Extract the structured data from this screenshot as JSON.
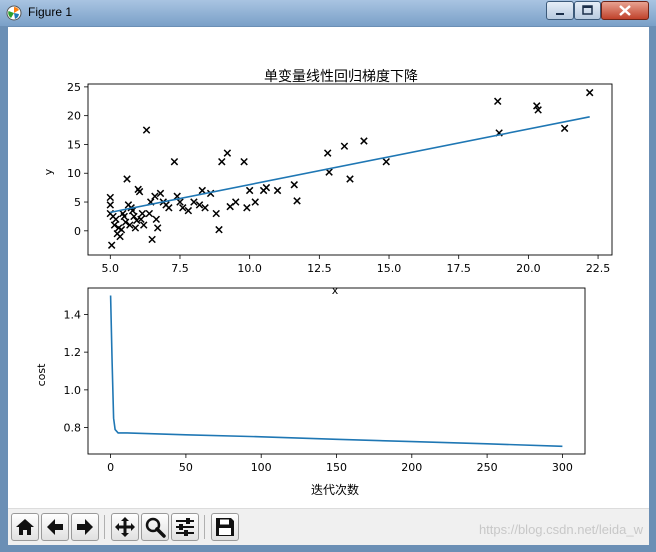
{
  "window": {
    "title": "Figure 1"
  },
  "chart_data": [
    {
      "type": "scatter",
      "title": "单变量线性回归梯度下降",
      "xlabel": "x",
      "ylabel": "y",
      "xlim": [
        4.2,
        23.0
      ],
      "ylim": [
        -4.2,
        25.5
      ],
      "grid": false,
      "xticks": [
        5.0,
        7.5,
        10.0,
        12.5,
        15.0,
        17.5,
        20.0,
        22.5
      ],
      "xtick_labels": [
        "5.0",
        "7.5",
        "10.0",
        "12.5",
        "15.0",
        "17.5",
        "20.0",
        "22.5"
      ],
      "yticks": [
        0,
        5,
        10,
        15,
        20,
        25
      ],
      "ytick_labels": [
        "0",
        "5",
        "10",
        "15",
        "20",
        "25"
      ],
      "series": [
        {
          "kind": "scatter",
          "marker": "x",
          "color": "#000000",
          "points": [
            [
              5.0,
              5.8
            ],
            [
              5.0,
              4.5
            ],
            [
              5.0,
              3.0
            ],
            [
              5.05,
              -2.5
            ],
            [
              5.1,
              2.5
            ],
            [
              5.15,
              1.0
            ],
            [
              5.2,
              2.0
            ],
            [
              5.25,
              -0.5
            ],
            [
              5.3,
              0.5
            ],
            [
              5.35,
              -1.0
            ],
            [
              5.4,
              0.2
            ],
            [
              5.45,
              3.0
            ],
            [
              5.5,
              2.5
            ],
            [
              5.55,
              1.5
            ],
            [
              5.6,
              9.0
            ],
            [
              5.65,
              4.5
            ],
            [
              5.7,
              1.0
            ],
            [
              5.75,
              4.0
            ],
            [
              5.8,
              3.5
            ],
            [
              5.85,
              2.5
            ],
            [
              5.9,
              0.5
            ],
            [
              5.95,
              1.8
            ],
            [
              6.0,
              7.2
            ],
            [
              6.05,
              6.8
            ],
            [
              6.1,
              2.0
            ],
            [
              6.15,
              3.0
            ],
            [
              6.2,
              1.0
            ],
            [
              6.3,
              17.5
            ],
            [
              6.4,
              3.0
            ],
            [
              6.45,
              5.0
            ],
            [
              6.5,
              -1.5
            ],
            [
              6.6,
              6.0
            ],
            [
              6.65,
              2.0
            ],
            [
              6.7,
              0.5
            ],
            [
              6.8,
              6.5
            ],
            [
              6.9,
              5.0
            ],
            [
              7.0,
              4.5
            ],
            [
              7.1,
              4.0
            ],
            [
              7.3,
              12.0
            ],
            [
              7.4,
              6.0
            ],
            [
              7.5,
              5.0
            ],
            [
              7.6,
              4.0
            ],
            [
              7.8,
              3.5
            ],
            [
              8.0,
              5.0
            ],
            [
              8.2,
              4.5
            ],
            [
              8.3,
              7.0
            ],
            [
              8.4,
              4.0
            ],
            [
              8.6,
              6.5
            ],
            [
              8.8,
              3.0
            ],
            [
              8.9,
              0.2
            ],
            [
              9.0,
              12.0
            ],
            [
              9.2,
              13.5
            ],
            [
              9.3,
              4.2
            ],
            [
              9.5,
              5.0
            ],
            [
              9.8,
              12.0
            ],
            [
              9.9,
              4.0
            ],
            [
              10.0,
              7.0
            ],
            [
              10.2,
              5.0
            ],
            [
              10.5,
              7.0
            ],
            [
              10.6,
              7.5
            ],
            [
              11.0,
              7.0
            ],
            [
              11.6,
              8.0
            ],
            [
              11.7,
              5.2
            ],
            [
              12.8,
              13.5
            ],
            [
              12.85,
              10.2
            ],
            [
              13.4,
              14.7
            ],
            [
              13.6,
              9.0
            ],
            [
              14.1,
              15.6
            ],
            [
              14.9,
              12.0
            ],
            [
              18.9,
              22.5
            ],
            [
              18.95,
              17.0
            ],
            [
              20.3,
              21.7
            ],
            [
              20.35,
              21.0
            ],
            [
              21.3,
              17.8
            ],
            [
              22.2,
              24.0
            ]
          ]
        },
        {
          "kind": "line",
          "color": "#1f77b4",
          "points": [
            [
              5.0,
              3.2
            ],
            [
              22.2,
              19.8
            ]
          ]
        }
      ]
    },
    {
      "type": "line",
      "title": "",
      "xlabel": "迭代次数",
      "ylabel": "cost",
      "xlim": [
        -15,
        315
      ],
      "ylim": [
        0.66,
        1.54
      ],
      "grid": false,
      "xticks": [
        0,
        50,
        100,
        150,
        200,
        250,
        300
      ],
      "xtick_labels": [
        "0",
        "50",
        "100",
        "150",
        "200",
        "250",
        "300"
      ],
      "yticks": [
        0.8,
        1.0,
        1.2,
        1.4
      ],
      "ytick_labels": [
        "0.8",
        "1.0",
        "1.2",
        "1.4"
      ],
      "series": [
        {
          "kind": "line",
          "color": "#1f77b4",
          "points": [
            [
              0,
              1.5
            ],
            [
              1,
              1.15
            ],
            [
              2,
              0.85
            ],
            [
              3,
              0.79
            ],
            [
              5,
              0.772
            ],
            [
              10,
              0.772
            ],
            [
              50,
              0.762
            ],
            [
              100,
              0.751
            ],
            [
              150,
              0.738
            ],
            [
              200,
              0.726
            ],
            [
              250,
              0.714
            ],
            [
              300,
              0.701
            ]
          ]
        }
      ]
    }
  ],
  "toolbar": {
    "buttons": [
      {
        "name": "home-button",
        "icon": "home-icon"
      },
      {
        "name": "back-button",
        "icon": "arrow-left-icon"
      },
      {
        "name": "forward-button",
        "icon": "arrow-right-icon"
      },
      {
        "name": "pan-button",
        "icon": "move-icon"
      },
      {
        "name": "zoom-button",
        "icon": "magnifier-icon"
      },
      {
        "name": "configure-subplots-button",
        "icon": "sliders-icon"
      },
      {
        "name": "save-button",
        "icon": "floppy-disk-icon"
      }
    ]
  },
  "watermark": "https://blog.csdn.net/leida_w"
}
